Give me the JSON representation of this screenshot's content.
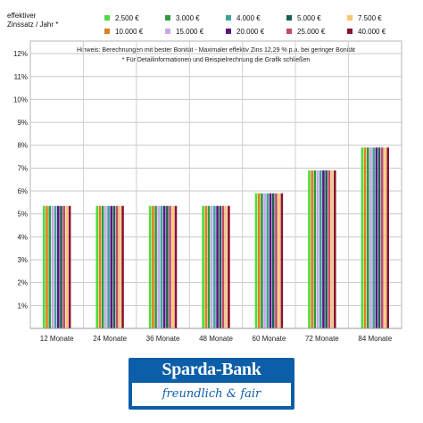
{
  "chart_data": {
    "type": "bar",
    "ylabel": "effektiver Zinssatz / Jahr *",
    "note_line1": "Hinweis: Berechnungen mit bester Bonität - Maximaler effektiv Zins 12,29 % p.a. bei geringer Bonität",
    "note_line2": "* Für Detailinformationen und Beispielrechnung die Grafik schließen",
    "categories": [
      "12 Monate",
      "24 Monate",
      "36 Monate",
      "48 Monate",
      "60 Monate",
      "72 Monate",
      "84 Monate"
    ],
    "ylim": [
      1,
      12
    ],
    "yticks": [
      "1%",
      "2%",
      "3%",
      "4%",
      "5%",
      "6%",
      "7%",
      "8%",
      "9%",
      "10%",
      "11%",
      "12%"
    ],
    "legend_placement": "top",
    "grid": true,
    "series": [
      {
        "name": "2.500 €",
        "color": "#4ddd3a",
        "values": [
          5.35,
          5.35,
          5.35,
          5.35,
          5.9,
          6.9,
          7.9
        ]
      },
      {
        "name": "10.000 €",
        "color": "#e07f1c",
        "values": [
          5.35,
          5.35,
          5.35,
          5.35,
          5.9,
          6.9,
          7.9
        ]
      },
      {
        "name": "3.000 €",
        "color": "#2e9a42",
        "values": [
          5.35,
          5.35,
          5.35,
          5.35,
          5.9,
          6.9,
          7.9
        ]
      },
      {
        "name": "15.000 €",
        "color": "#c9a8e6",
        "values": [
          5.35,
          5.35,
          5.35,
          5.35,
          5.9,
          6.9,
          7.9
        ]
      },
      {
        "name": "4.000 €",
        "color": "#3fa39a",
        "values": [
          5.35,
          5.35,
          5.35,
          5.35,
          5.9,
          6.9,
          7.9
        ]
      },
      {
        "name": "20.000 €",
        "color": "#5b1580",
        "values": [
          5.35,
          5.35,
          5.35,
          5.35,
          5.9,
          6.9,
          7.9
        ]
      },
      {
        "name": "5.000 €",
        "color": "#1c5e56",
        "values": [
          5.35,
          5.35,
          5.35,
          5.35,
          5.9,
          6.9,
          7.9
        ]
      },
      {
        "name": "25.000 €",
        "color": "#c24a6a",
        "values": [
          5.35,
          5.35,
          5.35,
          5.35,
          5.9,
          6.9,
          7.9
        ]
      },
      {
        "name": "7.500 €",
        "color": "#f5c872",
        "values": [
          5.35,
          5.35,
          5.35,
          5.35,
          5.9,
          6.9,
          7.9
        ]
      },
      {
        "name": "40.000 €",
        "color": "#8a1230",
        "values": [
          5.35,
          5.35,
          5.35,
          5.35,
          5.9,
          6.9,
          7.9
        ]
      }
    ]
  },
  "logo": {
    "top": "Sparda-Bank",
    "bottom": "freundlich & fair"
  }
}
